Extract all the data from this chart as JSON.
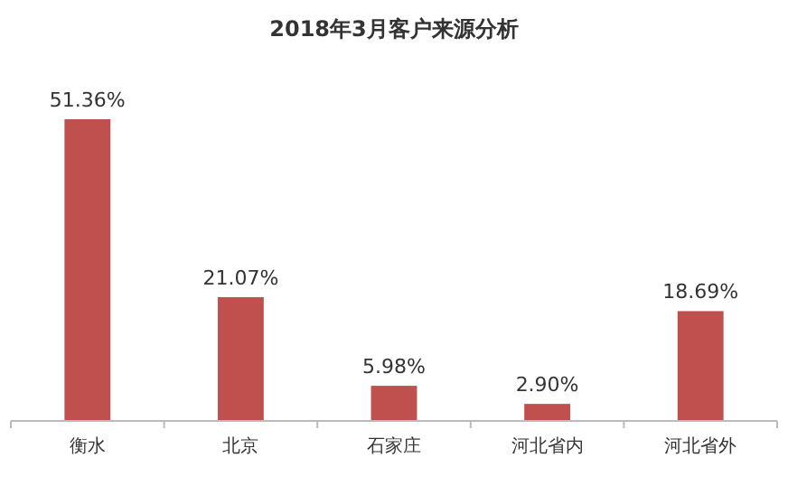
{
  "chart_data": {
    "type": "bar",
    "title": "2018年3月客户来源分析",
    "categories": [
      "衡水",
      "北京",
      "石家庄",
      "河北省内",
      "河北省外"
    ],
    "values": [
      51.36,
      21.07,
      5.98,
      2.9,
      18.69
    ],
    "value_labels": [
      "51.36%",
      "21.07%",
      "5.98%",
      "2.90%",
      "18.69%"
    ],
    "color": "#c0504d"
  }
}
